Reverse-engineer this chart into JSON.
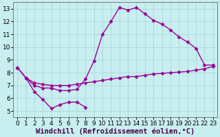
{
  "title": "",
  "xlabel": "Windchill (Refroidissement éolien,°C)",
  "ylabel": "",
  "bg_color": "#c8eef0",
  "grid_color": "#a8d8dc",
  "line_color": "#990099",
  "xlim": [
    -0.5,
    23.5
  ],
  "ylim": [
    4.5,
    13.5
  ],
  "xticks": [
    0,
    1,
    2,
    3,
    4,
    5,
    6,
    7,
    8,
    9,
    10,
    11,
    12,
    13,
    14,
    15,
    16,
    17,
    18,
    19,
    20,
    21,
    22,
    23
  ],
  "yticks": [
    5,
    6,
    7,
    8,
    9,
    10,
    11,
    12,
    13
  ],
  "curve1_x": [
    0,
    1,
    2,
    3,
    4,
    5,
    6,
    7,
    8
  ],
  "curve1_y": [
    8.4,
    7.6,
    6.5,
    5.9,
    5.2,
    5.5,
    5.7,
    5.7,
    5.3
  ],
  "curve2_x": [
    0,
    1,
    2,
    3,
    4,
    5,
    6,
    7,
    8,
    9,
    10,
    11,
    12,
    13,
    14,
    15,
    16,
    17,
    18,
    19,
    20,
    21,
    22,
    23
  ],
  "curve2_y": [
    8.4,
    7.6,
    7.0,
    6.8,
    6.8,
    6.6,
    6.6,
    6.7,
    7.5,
    8.9,
    11.0,
    12.0,
    13.1,
    12.9,
    13.1,
    12.6,
    12.1,
    11.8,
    11.35,
    10.8,
    10.4,
    9.9,
    8.6,
    8.6
  ],
  "curve3_x": [
    0,
    1,
    2,
    3,
    4,
    5,
    6,
    7,
    8,
    9,
    10,
    11,
    12,
    13,
    14,
    15,
    16,
    17,
    18,
    19,
    20,
    21,
    22,
    23
  ],
  "curve3_y": [
    8.4,
    7.6,
    7.2,
    7.1,
    7.0,
    7.0,
    7.0,
    7.1,
    7.2,
    7.3,
    7.4,
    7.5,
    7.6,
    7.7,
    7.7,
    7.8,
    7.9,
    7.95,
    8.0,
    8.05,
    8.1,
    8.2,
    8.3,
    8.5
  ],
  "xlabel_fontsize": 7.5,
  "tick_fontsize": 6.5,
  "marker": "D",
  "marker_size": 2.5,
  "linewidth": 1.0
}
